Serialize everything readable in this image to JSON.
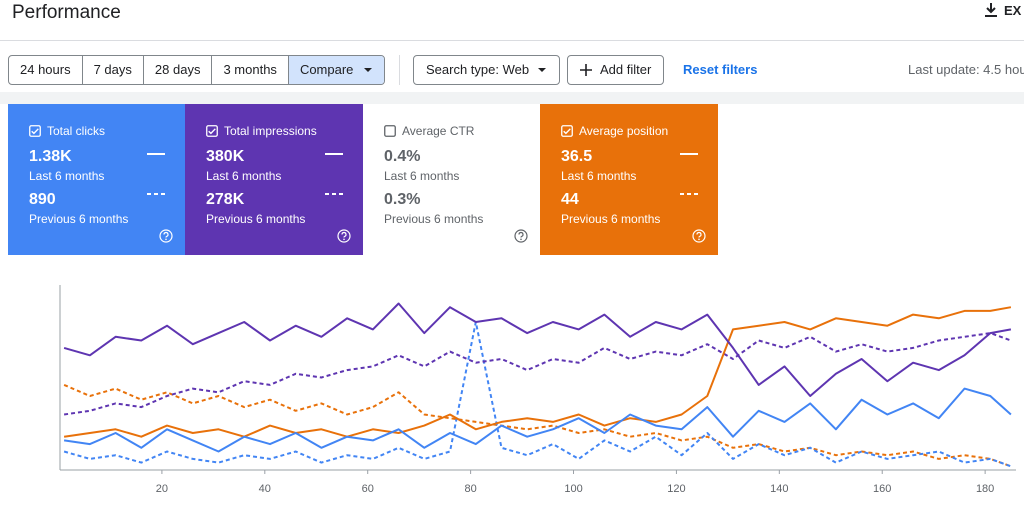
{
  "header": {
    "title": "Performance",
    "export": "EX"
  },
  "filters": {
    "ranges": [
      "24 hours",
      "7 days",
      "28 days",
      "3 months"
    ],
    "compare": "Compare",
    "search_type": "Search type: Web",
    "add_filter": "Add filter",
    "reset": "Reset filters"
  },
  "last_update": "Last update: 4.5 hou",
  "cards": [
    {
      "label": "Total clicks",
      "checked": true,
      "color": "#4285f4",
      "current_value": "1.38K",
      "current_period": "Last 6 months",
      "previous_value": "890",
      "previous_period": "Previous 6 months"
    },
    {
      "label": "Total impressions",
      "checked": true,
      "color": "#5e35b1",
      "current_value": "380K",
      "current_period": "Last 6 months",
      "previous_value": "278K",
      "previous_period": "Previous 6 months"
    },
    {
      "label": "Average CTR",
      "checked": false,
      "color": "#ffffff",
      "current_value": "0.4%",
      "current_period": "Last 6 months",
      "previous_value": "0.3%",
      "previous_period": "Previous 6 months"
    },
    {
      "label": "Average position",
      "checked": true,
      "color": "#e8710a",
      "current_value": "36.5",
      "current_period": "Last 6 months",
      "previous_value": "44",
      "previous_period": "Previous 6 months"
    }
  ],
  "chart_data": {
    "type": "line",
    "x": [
      1,
      6,
      11,
      16,
      21,
      26,
      31,
      36,
      41,
      46,
      51,
      56,
      61,
      66,
      71,
      76,
      81,
      86,
      91,
      96,
      101,
      106,
      111,
      116,
      121,
      126,
      131,
      136,
      141,
      146,
      151,
      156,
      161,
      166,
      171,
      176,
      181,
      185
    ],
    "xlim": [
      0,
      186
    ],
    "xticks": [
      20,
      40,
      60,
      80,
      100,
      120,
      140,
      160,
      180
    ],
    "ylim": [
      0,
      100
    ],
    "series": [
      {
        "color": "#e8710a",
        "dashed": true,
        "values": [
          46,
          40,
          44,
          38,
          42,
          36,
          40,
          34,
          38,
          32,
          36,
          30,
          34,
          42,
          30,
          28,
          26,
          24,
          22,
          24,
          20,
          22,
          18,
          20,
          16,
          18,
          12,
          14,
          10,
          12,
          8,
          10,
          8,
          10,
          6,
          8,
          6,
          2
        ]
      },
      {
        "color": "#4285f4",
        "dashed": true,
        "values": [
          10,
          6,
          8,
          4,
          10,
          6,
          4,
          8,
          6,
          10,
          4,
          8,
          6,
          12,
          6,
          10,
          80,
          12,
          8,
          14,
          6,
          16,
          10,
          18,
          8,
          20,
          6,
          14,
          8,
          12,
          4,
          10,
          6,
          8,
          10,
          4,
          6,
          2
        ]
      },
      {
        "color": "#5e35b1",
        "dashed": true,
        "values": [
          30,
          32,
          36,
          34,
          40,
          44,
          42,
          48,
          46,
          52,
          50,
          54,
          56,
          62,
          56,
          64,
          58,
          60,
          54,
          60,
          58,
          66,
          60,
          64,
          62,
          68,
          60,
          70,
          66,
          72,
          64,
          68,
          64,
          66,
          70,
          72,
          74,
          70
        ]
      },
      {
        "color": "#e8710a",
        "dashed": false,
        "values": [
          18,
          20,
          22,
          18,
          24,
          20,
          22,
          18,
          24,
          20,
          22,
          18,
          22,
          20,
          24,
          30,
          22,
          26,
          28,
          26,
          30,
          24,
          28,
          26,
          30,
          40,
          76,
          78,
          80,
          76,
          82,
          80,
          78,
          84,
          82,
          86,
          86,
          88
        ]
      },
      {
        "color": "#4285f4",
        "dashed": false,
        "values": [
          16,
          14,
          20,
          12,
          22,
          16,
          10,
          18,
          14,
          20,
          12,
          18,
          16,
          22,
          12,
          20,
          14,
          24,
          18,
          22,
          28,
          20,
          30,
          24,
          22,
          34,
          18,
          32,
          26,
          36,
          22,
          38,
          30,
          36,
          28,
          44,
          40,
          30
        ]
      },
      {
        "color": "#5e35b1",
        "dashed": false,
        "values": [
          66,
          62,
          72,
          70,
          78,
          68,
          74,
          80,
          70,
          78,
          72,
          82,
          76,
          90,
          74,
          88,
          80,
          82,
          74,
          80,
          76,
          84,
          72,
          80,
          76,
          84,
          66,
          46,
          56,
          40,
          52,
          60,
          48,
          58,
          54,
          62,
          74,
          76
        ]
      }
    ]
  }
}
